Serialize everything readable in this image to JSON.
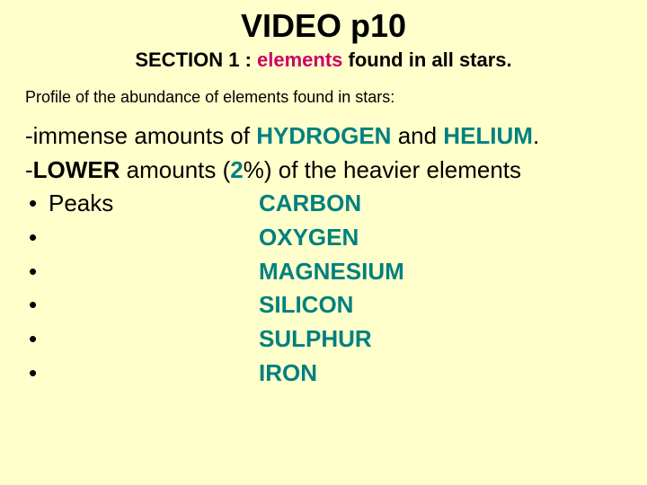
{
  "colors": {
    "background": "#ffffcc",
    "text": "#000000",
    "accent_pink": "#cc0066",
    "accent_teal": "#008080"
  },
  "typography": {
    "title_fontsize": 36,
    "subtitle_fontsize": 22,
    "profile_fontsize": 18,
    "body_fontsize": 26,
    "font_family": "Arial"
  },
  "title": "VIDEO p10",
  "subtitle": {
    "prefix": "SECTION 1 : ",
    "highlight": "elements",
    "suffix": " found in all stars."
  },
  "profile_line": "Profile of the abundance of elements found in stars:",
  "line1": {
    "pre": "-immense amounts of ",
    "el1": "HYDROGEN",
    "mid": " and ",
    "el2": "HELIUM",
    "post": "."
  },
  "line2": {
    "pre": "-",
    "kw": "LOWER",
    "mid1": " amounts (",
    "pct": "2",
    "mid2": "%) of the heavier elements"
  },
  "peaks_label": "Peaks",
  "bullet_char": "•",
  "elements": [
    "CARBON",
    "OXYGEN",
    "MAGNESIUM",
    "SILICON",
    "SULPHUR",
    "IRON"
  ]
}
